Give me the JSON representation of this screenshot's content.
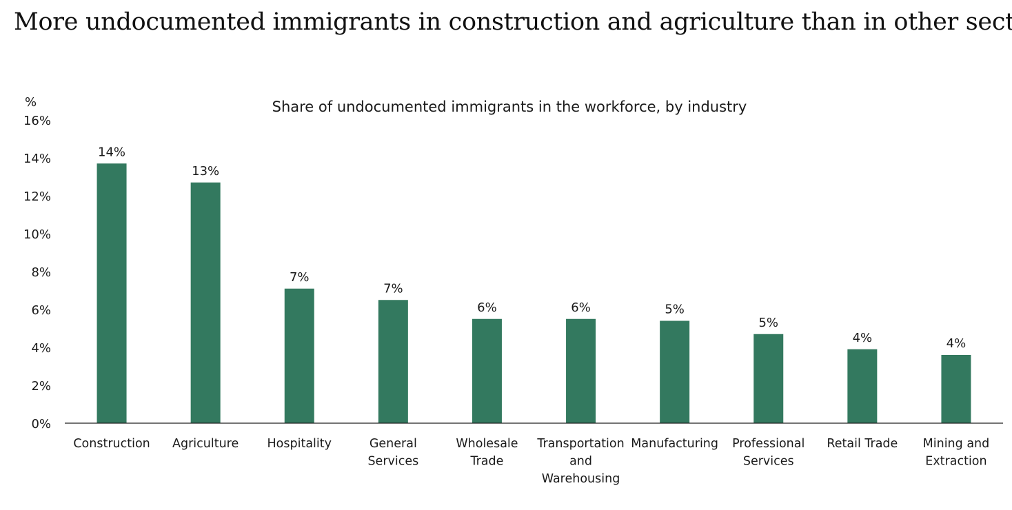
{
  "page": {
    "headline": "More undocumented immigrants in construction and agriculture than in other sectors"
  },
  "chart_data": {
    "type": "bar",
    "title": "Share of undocumented immigrants in the workforce, by industry",
    "ylabel": "%",
    "xlabel": "",
    "ylim": [
      0,
      16
    ],
    "y_ticks": [
      0,
      2,
      4,
      6,
      8,
      10,
      12,
      14,
      16
    ],
    "y_tick_labels": [
      "0%",
      "2%",
      "4%",
      "6%",
      "8%",
      "10%",
      "12%",
      "14%",
      "16%"
    ],
    "grid": false,
    "legend": "none",
    "bar_color": "#33795f",
    "categories": [
      [
        "Construction"
      ],
      [
        "Agriculture"
      ],
      [
        "Hospitality"
      ],
      [
        "General",
        "Services"
      ],
      [
        "Wholesale",
        "Trade"
      ],
      [
        "Transportation",
        "and",
        "Warehousing"
      ],
      [
        "Manufacturing"
      ],
      [
        "Professional",
        "Services"
      ],
      [
        "Retail Trade"
      ],
      [
        "Mining and",
        "Extraction"
      ]
    ],
    "values": [
      13.7,
      12.7,
      7.1,
      6.5,
      5.5,
      5.5,
      5.4,
      4.7,
      3.9,
      3.6
    ],
    "data_labels": [
      "14%",
      "13%",
      "7%",
      "7%",
      "6%",
      "6%",
      "5%",
      "5%",
      "4%",
      "4%"
    ]
  }
}
